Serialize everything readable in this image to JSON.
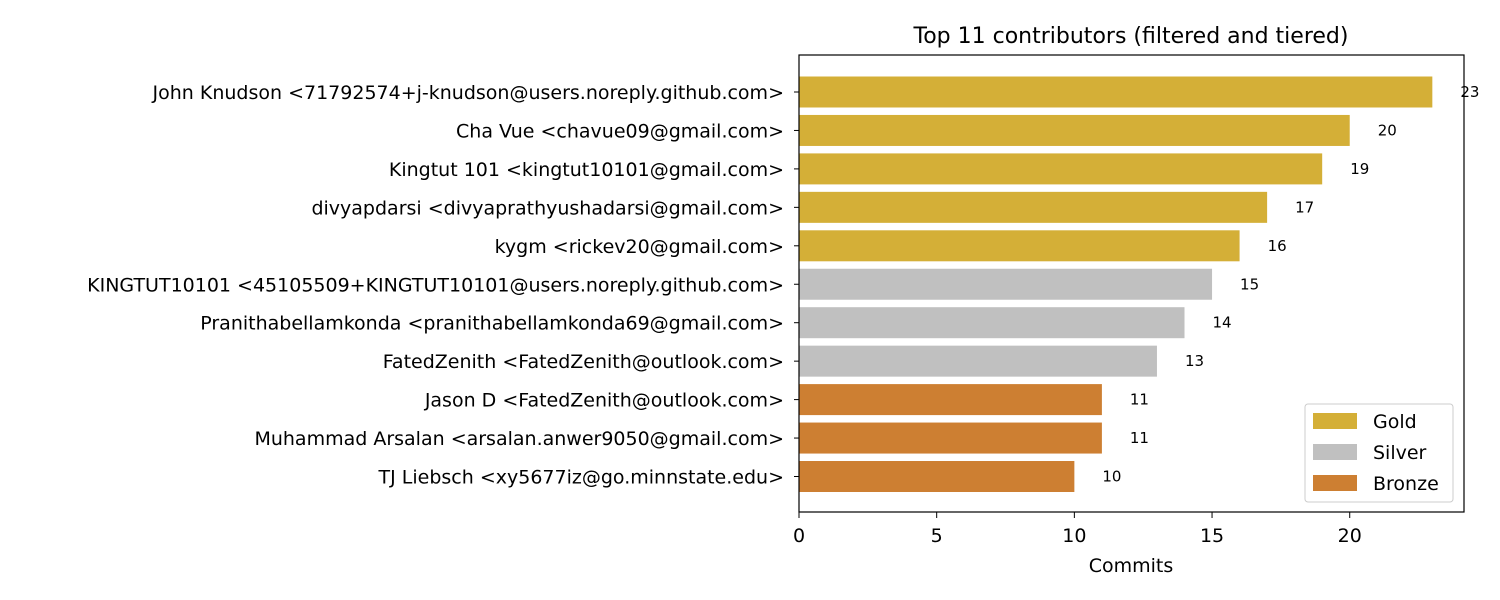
{
  "chart_data": {
    "type": "bar",
    "orientation": "horizontal",
    "title": "Top 11 contributors (filtered and tiered)",
    "xlabel": "Commits",
    "ylabel": "",
    "xlim": [
      0,
      24.15
    ],
    "xticks": [
      0,
      5,
      10,
      15,
      20
    ],
    "grid": false,
    "legend_position": "lower-right",
    "categories": [
      "John Knudson <71792574+j-knudson@users.noreply.github.com>",
      "Cha Vue <chavue09@gmail.com>",
      "Kingtut 101 <kingtut10101@gmail.com>",
      "divyapdarsi <divyaprathyushadarsi@gmail.com>",
      "kygm <rickev20@gmail.com>",
      "KINGTUT10101 <45105509+KINGTUT10101@users.noreply.github.com>",
      "Pranithabellamkonda <pranithabellamkonda69@gmail.com>",
      "FatedZenith <FatedZenith@outlook.com>",
      "Jason D <FatedZenith@outlook.com>",
      "Muhammad Arsalan <arsalan.anwer9050@gmail.com>",
      "TJ Liebsch <xy5677iz@go.minnstate.edu>"
    ],
    "values": [
      23,
      20,
      19,
      17,
      16,
      15,
      14,
      13,
      11,
      11,
      10
    ],
    "tiers": [
      "Gold",
      "Gold",
      "Gold",
      "Gold",
      "Gold",
      "Silver",
      "Silver",
      "Silver",
      "Bronze",
      "Bronze",
      "Bronze"
    ],
    "tier_colors": {
      "Gold": "#d4af37",
      "Silver": "#c0c0c0",
      "Bronze": "#cd7f32"
    },
    "legend": [
      {
        "label": "Gold",
        "color": "#d4af37"
      },
      {
        "label": "Silver",
        "color": "#c0c0c0"
      },
      {
        "label": "Bronze",
        "color": "#cd7f32"
      }
    ]
  }
}
